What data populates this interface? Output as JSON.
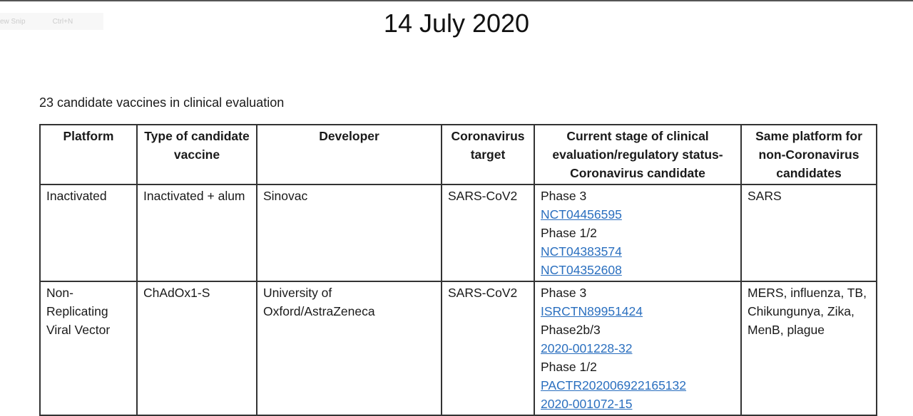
{
  "snip_menu": {
    "label": "ew Snip",
    "shortcut": "Ctrl+N"
  },
  "date": "14 July 2020",
  "caption": "23 candidate vaccines in clinical evaluation",
  "table": {
    "headers": [
      "Platform",
      "Type of candidate vaccine",
      "Developer",
      "Coronavirus target",
      "Current stage of clinical evaluation/regulatory status- Coronavirus candidate",
      "Same platform for non-Coronavirus candidates"
    ],
    "rows": [
      {
        "platform": "Inactivated",
        "type": "Inactivated + alum",
        "developer": "Sinovac",
        "target": "SARS-CoV2",
        "stage": [
          {
            "text": "Phase 3",
            "link": false
          },
          {
            "text": "NCT04456595",
            "link": true
          },
          {
            "text": "Phase 1/2",
            "link": false
          },
          {
            "text": "NCT04383574",
            "link": true
          },
          {
            "text": "NCT04352608",
            "link": true
          }
        ],
        "same_platform": "SARS"
      },
      {
        "platform": "Non-Replicating Viral Vector",
        "type": "ChAdOx1-S",
        "developer": "University of Oxford/AstraZeneca",
        "target": "SARS-CoV2",
        "stage": [
          {
            "text": "Phase 3",
            "link": false
          },
          {
            "text": "ISRCTN89951424",
            "link": true
          },
          {
            "text": "Phase2b/3",
            "link": false
          },
          {
            "text": "2020-001228-32",
            "link": true
          },
          {
            "text": "Phase 1/2",
            "link": false
          },
          {
            "text": "PACTR202006922165132",
            "link": true
          },
          {
            "text": "2020-001072-15",
            "link": true
          }
        ],
        "same_platform": "MERS, influenza, TB, Chikungunya, Zika, MenB, plague"
      }
    ]
  },
  "colors": {
    "link": "#2a6fbf",
    "border": "#333333"
  }
}
